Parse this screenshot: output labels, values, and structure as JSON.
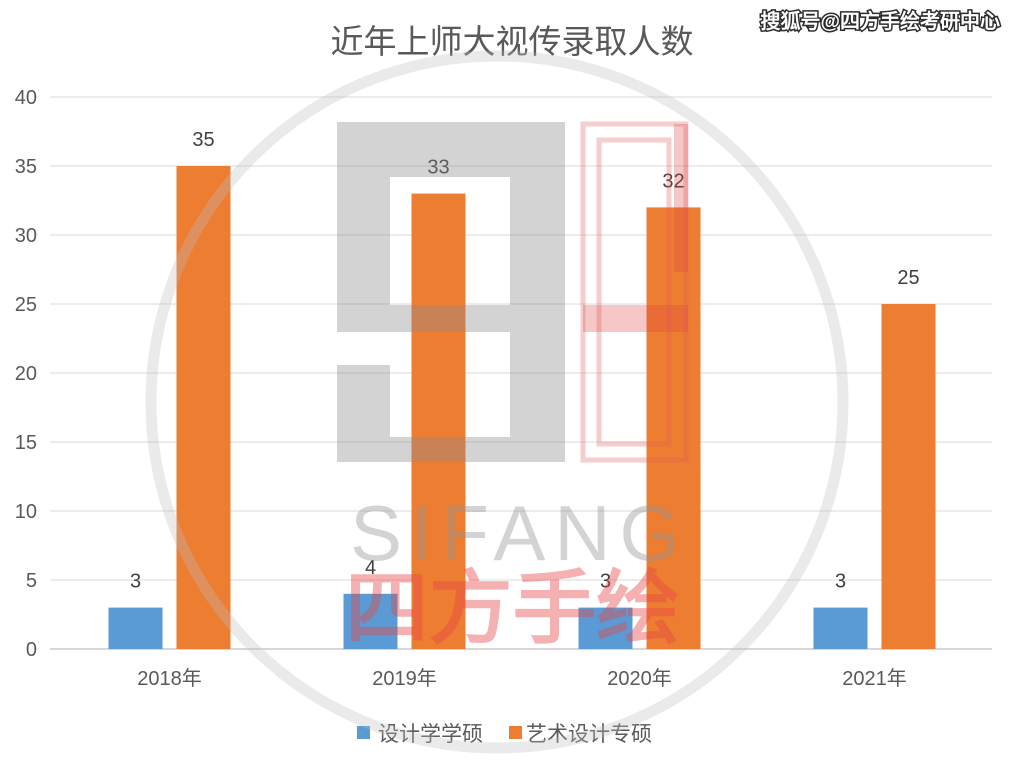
{
  "header": {
    "source_watermark": "搜狐号@四方手绘考研中心"
  },
  "watermark": {
    "logo_text_en": "SIFANG",
    "logo_text_cn": "四方手绘"
  },
  "chart_data": {
    "type": "bar",
    "title": "近年上师大视传录取人数",
    "categories": [
      "2018年",
      "2019年",
      "2020年",
      "2021年"
    ],
    "series": [
      {
        "name": "设计学学硕",
        "values": [
          3,
          4,
          3,
          3
        ],
        "color": "#5b9bd5"
      },
      {
        "name": "艺术设计专硕",
        "values": [
          35,
          33,
          32,
          25
        ],
        "color": "#ed7d31"
      }
    ],
    "xlabel": "",
    "ylabel": "",
    "ylim": [
      0,
      40
    ],
    "yticks": [
      0,
      5,
      10,
      15,
      20,
      25,
      30,
      35,
      40
    ],
    "grid": true,
    "legend": "bottom",
    "data_labels": true
  }
}
